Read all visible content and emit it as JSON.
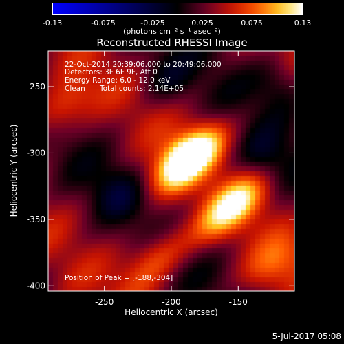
{
  "colorbar": {
    "ticks": [
      "-0.13",
      "-0.075",
      "-0.025",
      "0.025",
      "0.075",
      "0.13"
    ],
    "unit_label": "(photons cm⁻² s⁻¹ asec⁻²)",
    "min": -0.13,
    "max": 0.13
  },
  "chart_data": {
    "type": "heatmap",
    "title": "Reconstructed RHESSI Image",
    "xlabel": "Heliocentric X (arcsec)",
    "ylabel": "Heliocentric Y (arcsec)",
    "xlim": [
      -292,
      -108
    ],
    "ylim": [
      -404,
      -223
    ],
    "xticks": [
      -250,
      -200,
      -150
    ],
    "yticks": [
      -250,
      -300,
      -350,
      -400
    ],
    "peak": {
      "x": -188,
      "y": -304
    },
    "sources": [
      {
        "x": -188,
        "y": -304,
        "intensity": 0.13
      },
      {
        "x": -155,
        "y": -340,
        "intensity": 0.085
      },
      {
        "x": -210,
        "y": -378,
        "intensity": 0.06
      },
      {
        "x": -285,
        "y": -268,
        "intensity": 0.055
      },
      {
        "x": -125,
        "y": -385,
        "intensity": 0.04
      }
    ]
  },
  "annotations": {
    "time_range": "22-Oct-2014 20:39:06.000 to 20:49:06.000",
    "detectors": "Detectors: 3F 6F 9F, Att 0",
    "energy_range": "Energy Range: 6.0 - 12.0 keV",
    "clean_label": "Clean",
    "total_counts": "Total counts: 2.14E+05",
    "peak_position": "Position of Peak = [-188,-304]"
  },
  "timestamp": "5-Jul-2017 05:08"
}
